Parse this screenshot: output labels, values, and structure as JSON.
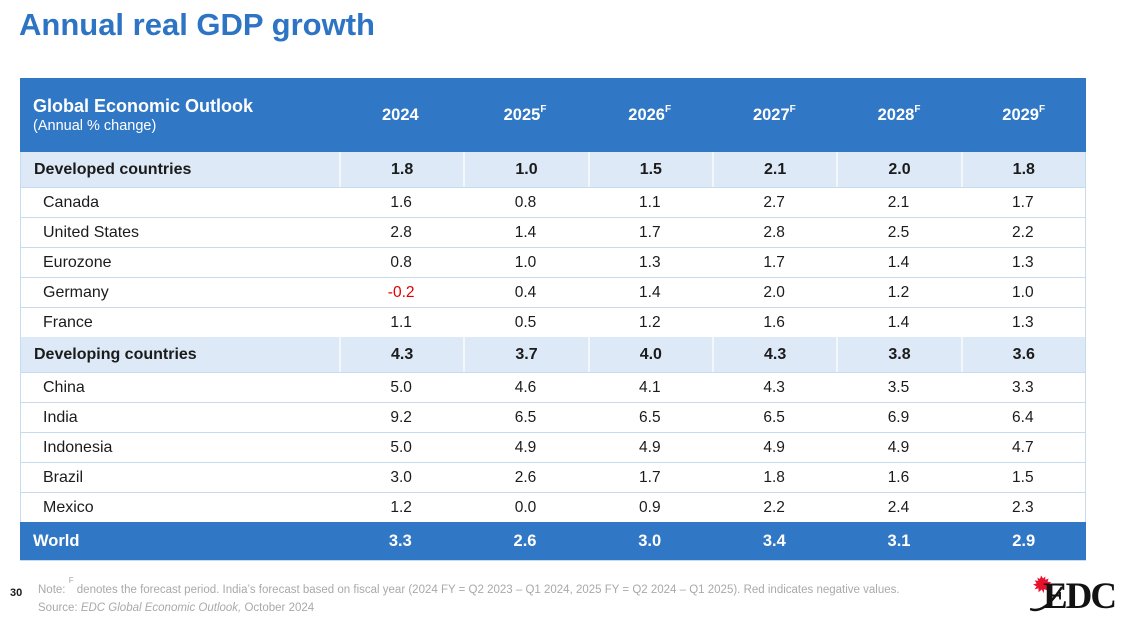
{
  "slide": {
    "title": "Annual real GDP growth",
    "page_number": "30",
    "footnote": {
      "prefix": "Note: ",
      "sup": "F",
      "text": " denotes the forecast period. India’s forecast based on fiscal year (2024 FY = Q2 2023 – Q1 2024, 2025 FY = Q2 2024 – Q1 2025). Red indicates negative values."
    },
    "source": {
      "prefix": "Source: ",
      "italic": "EDC Global Economic Outlook,",
      "text": " October 2024"
    },
    "logo": {
      "name": "EDC",
      "icon": "maple-leaf-icon"
    }
  },
  "table_header": {
    "title": "Global Economic Outlook",
    "subtitle": "(Annual % change)"
  },
  "chart_data": {
    "type": "table",
    "title": "Global Economic Outlook (Annual % change)",
    "columns": [
      {
        "year": "2024",
        "sup": ""
      },
      {
        "year": "2025",
        "sup": "F"
      },
      {
        "year": "2026",
        "sup": "F"
      },
      {
        "year": "2027",
        "sup": "F"
      },
      {
        "year": "2028",
        "sup": "F"
      },
      {
        "year": "2029",
        "sup": "F"
      }
    ],
    "rows": [
      {
        "label": "Developed countries",
        "style": "group",
        "values": [
          "1.8",
          "1.0",
          "1.5",
          "2.1",
          "2.0",
          "1.8"
        ]
      },
      {
        "label": "Canada",
        "style": "country",
        "values": [
          "1.6",
          "0.8",
          "1.1",
          "2.7",
          "2.1",
          "1.7"
        ]
      },
      {
        "label": "United States",
        "style": "country",
        "values": [
          "2.8",
          "1.4",
          "1.7",
          "2.8",
          "2.5",
          "2.2"
        ]
      },
      {
        "label": "Eurozone",
        "style": "country",
        "values": [
          "0.8",
          "1.0",
          "1.3",
          "1.7",
          "1.4",
          "1.3"
        ]
      },
      {
        "label": "Germany",
        "style": "country",
        "values": [
          "-0.2",
          "0.4",
          "1.4",
          "2.0",
          "1.2",
          "1.0"
        ]
      },
      {
        "label": "France",
        "style": "country",
        "values": [
          "1.1",
          "0.5",
          "1.2",
          "1.6",
          "1.4",
          "1.3"
        ]
      },
      {
        "label": "Developing countries",
        "style": "group",
        "values": [
          "4.3",
          "3.7",
          "4.0",
          "4.3",
          "3.8",
          "3.6"
        ]
      },
      {
        "label": "China",
        "style": "country",
        "values": [
          "5.0",
          "4.6",
          "4.1",
          "4.3",
          "3.5",
          "3.3"
        ]
      },
      {
        "label": "India",
        "style": "country",
        "values": [
          "9.2",
          "6.5",
          "6.5",
          "6.5",
          "6.9",
          "6.4"
        ]
      },
      {
        "label": "Indonesia",
        "style": "country",
        "values": [
          "5.0",
          "4.9",
          "4.9",
          "4.9",
          "4.9",
          "4.7"
        ]
      },
      {
        "label": "Brazil",
        "style": "country",
        "values": [
          "3.0",
          "2.6",
          "1.7",
          "1.8",
          "1.6",
          "1.5"
        ]
      },
      {
        "label": "Mexico",
        "style": "country",
        "values": [
          "1.2",
          "0.0",
          "0.9",
          "2.2",
          "2.4",
          "2.3"
        ]
      },
      {
        "label": "World",
        "style": "total",
        "values": [
          "3.3",
          "2.6",
          "3.0",
          "3.4",
          "3.1",
          "2.9"
        ]
      }
    ],
    "legend": "none",
    "grid": "horizontal-row-separators"
  },
  "colors": {
    "title": "#2E74C4",
    "header_bg": "#3077C5",
    "group_bg": "#DDE9F6",
    "row_border": "#C7DBEE",
    "negative": "#E00000",
    "note_text": "#A9A9A9",
    "logo_red": "#E8112D"
  }
}
